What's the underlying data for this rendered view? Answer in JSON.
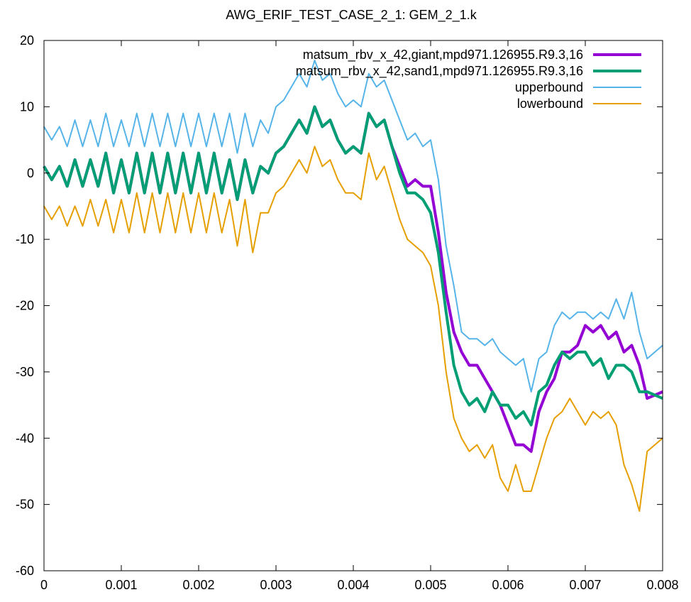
{
  "chart_data": {
    "type": "line",
    "title": "AWG_ERIF_TEST_CASE_2_1: GEM_2_1.k",
    "xlabel": "",
    "ylabel": "",
    "xlim": [
      0,
      0.008
    ],
    "ylim": [
      -60,
      20
    ],
    "xticks": [
      {
        "value": 0,
        "label": "0"
      },
      {
        "value": 0.001,
        "label": "0.001"
      },
      {
        "value": 0.002,
        "label": "0.002"
      },
      {
        "value": 0.003,
        "label": "0.003"
      },
      {
        "value": 0.004,
        "label": "0.004"
      },
      {
        "value": 0.005,
        "label": "0.005"
      },
      {
        "value": 0.006,
        "label": "0.006"
      },
      {
        "value": 0.007,
        "label": "0.007"
      },
      {
        "value": 0.008,
        "label": "0.008"
      }
    ],
    "yticks": [
      {
        "value": 20,
        "label": "20"
      },
      {
        "value": 10,
        "label": "10"
      },
      {
        "value": 0,
        "label": "0"
      },
      {
        "value": -10,
        "label": "-10"
      },
      {
        "value": -20,
        "label": "-20"
      },
      {
        "value": -30,
        "label": "-30"
      },
      {
        "value": -40,
        "label": "-40"
      },
      {
        "value": -50,
        "label": "-50"
      },
      {
        "value": -60,
        "label": "-60"
      }
    ],
    "grid": false,
    "legend_position": "top-right",
    "series": [
      {
        "name": "matsum_rbv_x_42,giant,mpd971.126955.R9.3,16",
        "color": "#9400d3",
        "x": [
          0,
          0.0001,
          0.0002,
          0.0003,
          0.0004,
          0.0005,
          0.0006,
          0.0007,
          0.0008,
          0.0009,
          0.001,
          0.0011,
          0.0012,
          0.0013,
          0.0014,
          0.0015,
          0.0016,
          0.0017,
          0.0018,
          0.0019,
          0.002,
          0.0021,
          0.0022,
          0.0023,
          0.0024,
          0.0025,
          0.0026,
          0.0027,
          0.0028,
          0.0029,
          0.003,
          0.0031,
          0.0032,
          0.0033,
          0.0034,
          0.0035,
          0.0036,
          0.0037,
          0.0038,
          0.0039,
          0.004,
          0.0041,
          0.0042,
          0.0043,
          0.0044,
          0.0045,
          0.0046,
          0.0047,
          0.0048,
          0.0049,
          0.005,
          0.0051,
          0.0052,
          0.0053,
          0.0054,
          0.0055,
          0.0056,
          0.0057,
          0.0058,
          0.0059,
          0.006,
          0.0061,
          0.0062,
          0.0063,
          0.0064,
          0.0065,
          0.0066,
          0.0067,
          0.0068,
          0.0069,
          0.007,
          0.0071,
          0.0072,
          0.0073,
          0.0074,
          0.0075,
          0.0076,
          0.0077,
          0.0078,
          0.008
        ],
        "values": [
          1,
          -1,
          1,
          -2,
          2,
          -2,
          2,
          -2,
          3,
          -3,
          2,
          -3,
          3,
          -3,
          3,
          -3,
          3,
          -3,
          3,
          -3,
          3,
          -3,
          3,
          -3,
          2,
          -4,
          2,
          -3,
          1,
          0,
          3,
          4,
          6,
          8,
          6,
          10,
          7,
          8,
          5,
          3,
          4,
          3,
          9,
          7,
          8,
          4,
          1,
          -2,
          -1,
          -2,
          -2,
          -9,
          -18,
          -24,
          -27,
          -29,
          -29,
          -31,
          -33,
          -35,
          -38,
          -41,
          -41,
          -42,
          -36,
          -33,
          -31,
          -27,
          -27,
          -26,
          -23,
          -24,
          -23,
          -25,
          -24,
          -27,
          -26,
          -29,
          -34,
          -33
        ]
      },
      {
        "name": "matsum_rbv_x_42,sand1,mpd971.126955.R9.3,16",
        "color": "#009e73",
        "x": [
          0,
          0.0001,
          0.0002,
          0.0003,
          0.0004,
          0.0005,
          0.0006,
          0.0007,
          0.0008,
          0.0009,
          0.001,
          0.0011,
          0.0012,
          0.0013,
          0.0014,
          0.0015,
          0.0016,
          0.0017,
          0.0018,
          0.0019,
          0.002,
          0.0021,
          0.0022,
          0.0023,
          0.0024,
          0.0025,
          0.0026,
          0.0027,
          0.0028,
          0.0029,
          0.003,
          0.0031,
          0.0032,
          0.0033,
          0.0034,
          0.0035,
          0.0036,
          0.0037,
          0.0038,
          0.0039,
          0.004,
          0.0041,
          0.0042,
          0.0043,
          0.0044,
          0.0045,
          0.0046,
          0.0047,
          0.0048,
          0.0049,
          0.005,
          0.0051,
          0.0052,
          0.0053,
          0.0054,
          0.0055,
          0.0056,
          0.0057,
          0.0058,
          0.0059,
          0.006,
          0.0061,
          0.0062,
          0.0063,
          0.0064,
          0.0065,
          0.0066,
          0.0067,
          0.0068,
          0.0069,
          0.007,
          0.0071,
          0.0072,
          0.0073,
          0.0074,
          0.0075,
          0.0076,
          0.0077,
          0.0078,
          0.008
        ],
        "values": [
          1,
          -1,
          1,
          -2,
          2,
          -2,
          2,
          -2,
          3,
          -3,
          2,
          -3,
          3,
          -3,
          3,
          -3,
          3,
          -3,
          3,
          -3,
          3,
          -3,
          3,
          -3,
          2,
          -4,
          2,
          -3,
          1,
          0,
          3,
          4,
          6,
          8,
          6,
          10,
          7,
          8,
          5,
          3,
          4,
          3,
          9,
          7,
          8,
          4,
          0,
          -3,
          -3,
          -4,
          -6,
          -12,
          -21,
          -29,
          -33,
          -35,
          -34,
          -36,
          -33,
          -35,
          -35,
          -37,
          -36,
          -38,
          -33,
          -32,
          -29,
          -27,
          -28,
          -27,
          -27,
          -29,
          -28,
          -31,
          -29,
          -29,
          -30,
          -33,
          -33,
          -34
        ]
      },
      {
        "name": "upperbound",
        "color": "#56b4e9",
        "x": [
          0,
          0.0001,
          0.0002,
          0.0003,
          0.0004,
          0.0005,
          0.0006,
          0.0007,
          0.0008,
          0.0009,
          0.001,
          0.0011,
          0.0012,
          0.0013,
          0.0014,
          0.0015,
          0.0016,
          0.0017,
          0.0018,
          0.0019,
          0.002,
          0.0021,
          0.0022,
          0.0023,
          0.0024,
          0.0025,
          0.0026,
          0.0027,
          0.0028,
          0.0029,
          0.003,
          0.0031,
          0.0032,
          0.0033,
          0.0034,
          0.0035,
          0.0036,
          0.0037,
          0.0038,
          0.0039,
          0.004,
          0.0041,
          0.0042,
          0.0043,
          0.0044,
          0.0045,
          0.0046,
          0.0047,
          0.0048,
          0.0049,
          0.005,
          0.0051,
          0.0052,
          0.0053,
          0.0054,
          0.0055,
          0.0056,
          0.0057,
          0.0058,
          0.0059,
          0.006,
          0.0061,
          0.0062,
          0.0063,
          0.0064,
          0.0065,
          0.0066,
          0.0067,
          0.0068,
          0.0069,
          0.007,
          0.0071,
          0.0072,
          0.0073,
          0.0074,
          0.0075,
          0.0076,
          0.0077,
          0.0078,
          0.008
        ],
        "values": [
          7,
          5,
          7,
          4,
          8,
          4,
          8,
          4,
          9,
          4,
          8,
          4,
          9,
          4,
          9,
          4,
          9,
          4,
          9,
          4,
          9,
          4,
          9,
          4,
          9,
          3,
          9,
          4,
          8,
          6,
          10,
          11,
          13,
          15,
          13,
          17,
          14,
          15,
          12,
          10,
          11,
          10,
          15,
          13,
          14,
          11,
          8,
          5,
          6,
          4,
          5,
          -1,
          -11,
          -17,
          -24,
          -25,
          -25,
          -26,
          -25,
          -27,
          -28,
          -29,
          -28,
          -33,
          -28,
          -27,
          -23,
          -21,
          -22,
          -21,
          -21,
          -22,
          -21,
          -22,
          -19,
          -22,
          -18,
          -24,
          -28,
          -26
        ]
      },
      {
        "name": "lowerbound",
        "color": "#e69f00",
        "x": [
          0,
          0.0001,
          0.0002,
          0.0003,
          0.0004,
          0.0005,
          0.0006,
          0.0007,
          0.0008,
          0.0009,
          0.001,
          0.0011,
          0.0012,
          0.0013,
          0.0014,
          0.0015,
          0.0016,
          0.0017,
          0.0018,
          0.0019,
          0.002,
          0.0021,
          0.0022,
          0.0023,
          0.0024,
          0.0025,
          0.0026,
          0.0027,
          0.0028,
          0.0029,
          0.003,
          0.0031,
          0.0032,
          0.0033,
          0.0034,
          0.0035,
          0.0036,
          0.0037,
          0.0038,
          0.0039,
          0.004,
          0.0041,
          0.0042,
          0.0043,
          0.0044,
          0.0045,
          0.0046,
          0.0047,
          0.0048,
          0.0049,
          0.005,
          0.0051,
          0.0052,
          0.0053,
          0.0054,
          0.0055,
          0.0056,
          0.0057,
          0.0058,
          0.0059,
          0.006,
          0.0061,
          0.0062,
          0.0063,
          0.0064,
          0.0065,
          0.0066,
          0.0067,
          0.0068,
          0.0069,
          0.007,
          0.0071,
          0.0072,
          0.0073,
          0.0074,
          0.0075,
          0.0076,
          0.0077,
          0.0078,
          0.008
        ],
        "values": [
          -5,
          -7,
          -5,
          -8,
          -5,
          -8,
          -4,
          -8,
          -4,
          -9,
          -4,
          -9,
          -3,
          -9,
          -3,
          -9,
          -3,
          -9,
          -3,
          -9,
          -3,
          -9,
          -3,
          -9,
          -4,
          -11,
          -4,
          -12,
          -6,
          -6,
          -3,
          -2,
          0,
          2,
          0,
          4,
          1,
          2,
          -1,
          -3,
          -3,
          -4,
          3,
          -1,
          1,
          -3,
          -7,
          -10,
          -11,
          -12,
          -14,
          -20,
          -30,
          -37,
          -40,
          -42,
          -41,
          -43,
          -41,
          -46,
          -48,
          -44,
          -48,
          -48,
          -44,
          -40,
          -37,
          -36,
          -34,
          -36,
          -38,
          -36,
          -37,
          -36,
          -38,
          -44,
          -47,
          -51,
          -42,
          -40
        ]
      }
    ]
  }
}
